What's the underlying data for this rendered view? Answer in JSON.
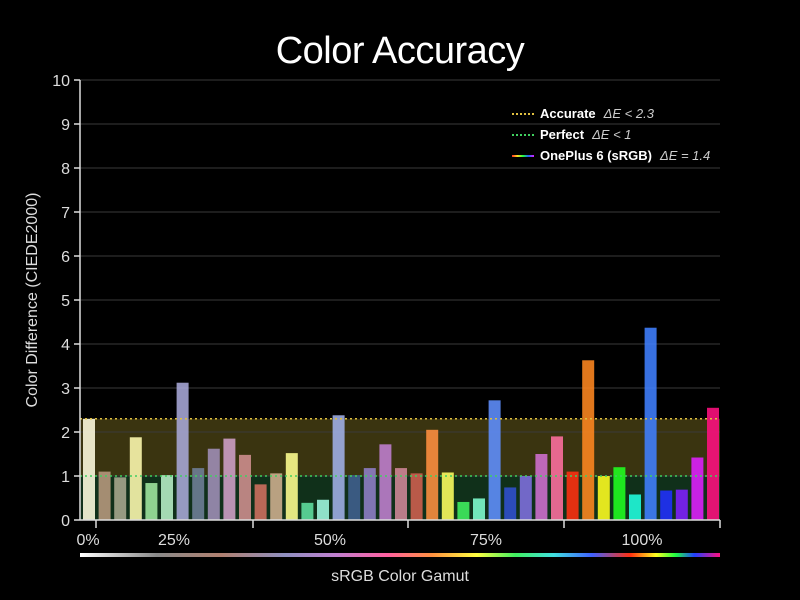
{
  "chart_data": {
    "type": "bar",
    "title": "Color Accuracy",
    "xlabel": "sRGB Color Gamut",
    "ylabel": "Color Difference (CIEDE2000)",
    "ylim": [
      0,
      10
    ],
    "yticks": [
      "0",
      "1",
      "2",
      "3",
      "4",
      "5",
      "6",
      "7",
      "8",
      "9",
      "10"
    ],
    "xticks": [
      {
        "label": "0%",
        "position": 0
      },
      {
        "label": "25%",
        "position": 0.25
      },
      {
        "label": "50%",
        "position": 0.5
      },
      {
        "label": "75%",
        "position": 0.75
      },
      {
        "label": "100%",
        "position": 1.0
      }
    ],
    "grid": true,
    "legend_position": "top-right",
    "reference_lines": [
      {
        "name": "Accurate",
        "value": 2.3,
        "label": "ΔE < 2.3",
        "color": "#e0c040"
      },
      {
        "name": "Perfect",
        "value": 1.0,
        "label": "ΔE < 1",
        "color": "#40d060"
      }
    ],
    "series": [
      {
        "name": "OnePlus 6 (sRGB)",
        "label": "ΔE = 1.4",
        "values": [
          2.3,
          1.1,
          0.97,
          1.88,
          0.84,
          1.02,
          3.12,
          1.18,
          1.62,
          1.85,
          1.48,
          0.81,
          1.06,
          1.52,
          0.39,
          0.46,
          2.38,
          1.02,
          1.18,
          1.72,
          1.18,
          1.06,
          2.05,
          1.08,
          0.41,
          0.49,
          2.72,
          0.74,
          1.0,
          1.5,
          1.9,
          1.1,
          3.63,
          1.0,
          1.2,
          0.58,
          4.37,
          0.67,
          0.69,
          1.42,
          2.55
        ],
        "colors": [
          "#fffde0",
          "#b89a7e",
          "#a8a890",
          "#fffcb0",
          "#a0e8a0",
          "#b8f0c8",
          "#a8a8d8",
          "#708098",
          "#a090b8",
          "#d0a0c8",
          "#d09090",
          "#d07060",
          "#d0b090",
          "#ffff90",
          "#60e0a0",
          "#a0f8e0",
          "#a0b0e8",
          "#406090",
          "#9080c8",
          "#c080d0",
          "#d08898",
          "#d06050",
          "#ff9040",
          "#ffff60",
          "#40f060",
          "#80ffd0",
          "#6090ff",
          "#3050d0",
          "#8070e0",
          "#d070d0",
          "#ff70a0",
          "#ff3010",
          "#ff8820",
          "#ffff20",
          "#20ff20",
          "#20ffe0",
          "#4080ff",
          "#2030ff",
          "#8020ff",
          "#e020ff",
          "#ff1080"
        ]
      }
    ]
  }
}
